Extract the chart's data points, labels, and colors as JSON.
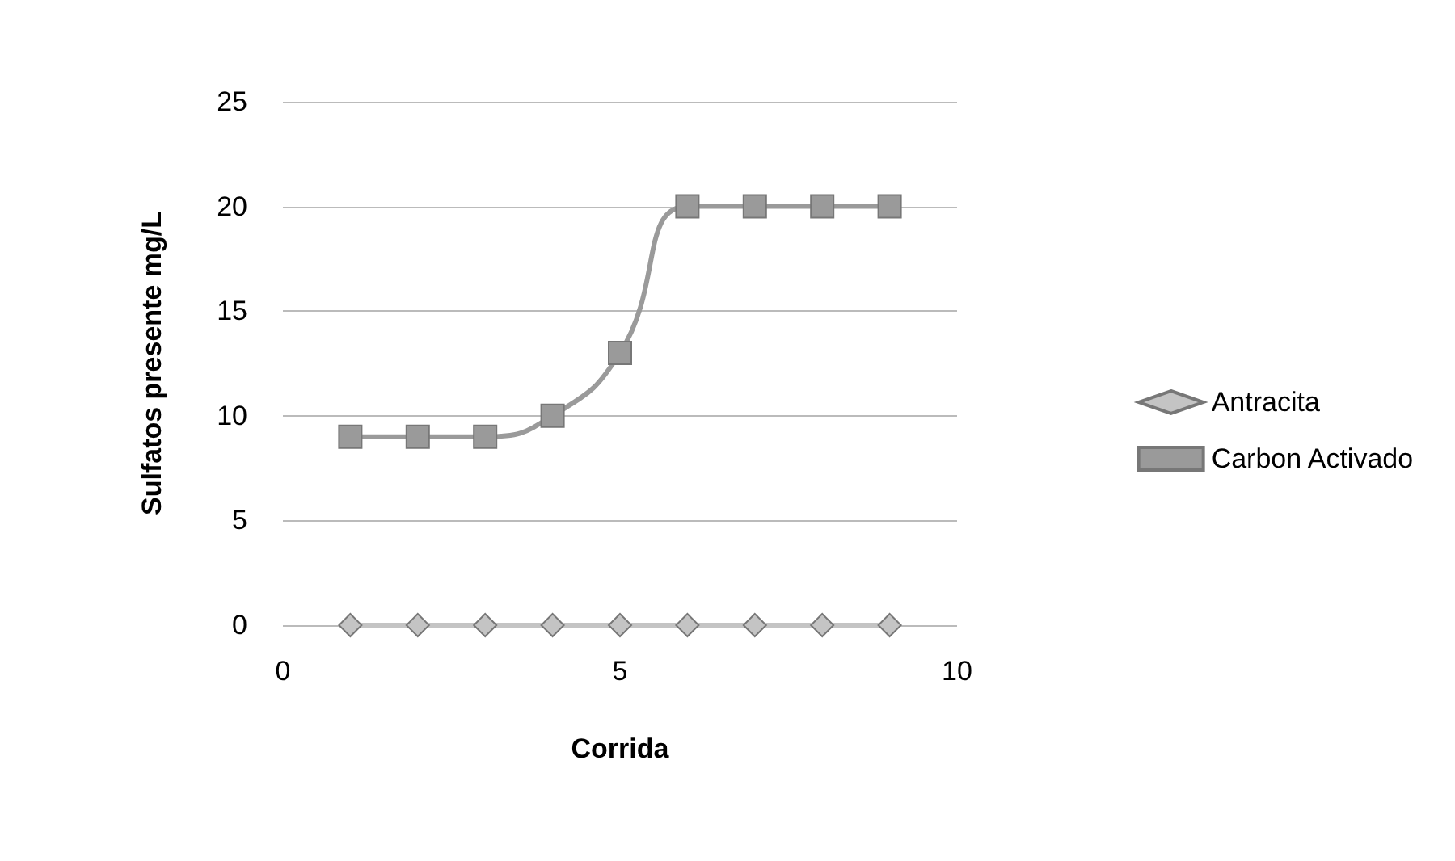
{
  "chart_data": {
    "type": "line",
    "xlabel": "Corrida",
    "ylabel": "Sulfatos presente mg/L",
    "xlim": [
      0,
      10
    ],
    "xticks": [
      0,
      5,
      10
    ],
    "ylim": [
      0,
      25
    ],
    "yticks": [
      0,
      5,
      10,
      15,
      20,
      25
    ],
    "grid": "y",
    "legend": "right",
    "series": [
      {
        "name": "Antracita",
        "color": "#c4c4c4",
        "marker": "diamond",
        "x": [
          1,
          2,
          3,
          4,
          5,
          6,
          7,
          8,
          9
        ],
        "values": [
          0,
          0,
          0,
          0,
          0,
          0,
          0,
          0,
          0
        ]
      },
      {
        "name": "Carbon Activado",
        "color": "#9a9a9a",
        "marker": "square",
        "x": [
          1,
          2,
          3,
          4,
          5,
          6,
          7,
          8,
          9
        ],
        "values": [
          9,
          9,
          9,
          10,
          13,
          20,
          20,
          20,
          20
        ]
      }
    ]
  }
}
